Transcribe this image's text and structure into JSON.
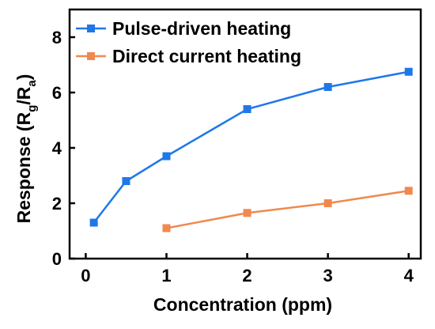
{
  "chart_data": {
    "type": "line",
    "xlabel": "Concentration (ppm)",
    "ylabel": {
      "main": "Response (R",
      "sub1": "g",
      "mid": "/R",
      "sub2": "a",
      "end": ")"
    },
    "xlim": [
      -0.2,
      4.15
    ],
    "ylim": [
      0,
      9
    ],
    "xticks": [
      0,
      1,
      2,
      3,
      4
    ],
    "yticks": [
      0,
      2,
      4,
      6,
      8
    ],
    "legend_position": "top-left",
    "series": [
      {
        "name": "Pulse-driven heating",
        "color": "#1f78e8",
        "x": [
          0.1,
          0.5,
          1,
          2,
          3,
          4
        ],
        "y": [
          1.3,
          2.8,
          3.7,
          5.4,
          6.2,
          6.75
        ]
      },
      {
        "name": "Direct current heating",
        "color": "#f0894f",
        "x": [
          1,
          2,
          3,
          4
        ],
        "y": [
          1.1,
          1.65,
          2.0,
          2.45
        ]
      }
    ]
  }
}
